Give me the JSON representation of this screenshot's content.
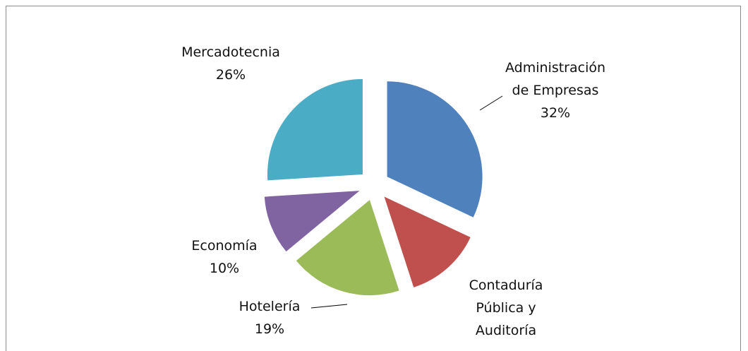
{
  "chart_data": {
    "type": "pie",
    "categories": [
      "Administración de Empresas",
      "Contaduría Pública y Auditoría",
      "Hotelería",
      "Economía",
      "Mercadotecnia"
    ],
    "values": [
      32,
      13,
      19,
      10,
      26
    ],
    "value_labels": [
      "32%",
      null,
      "19%",
      "10%",
      "26%"
    ],
    "colors": [
      "#4f81bd",
      "#c0504d",
      "#9bbb59",
      "#8064a2",
      "#4bacc6"
    ],
    "exploded": true
  }
}
